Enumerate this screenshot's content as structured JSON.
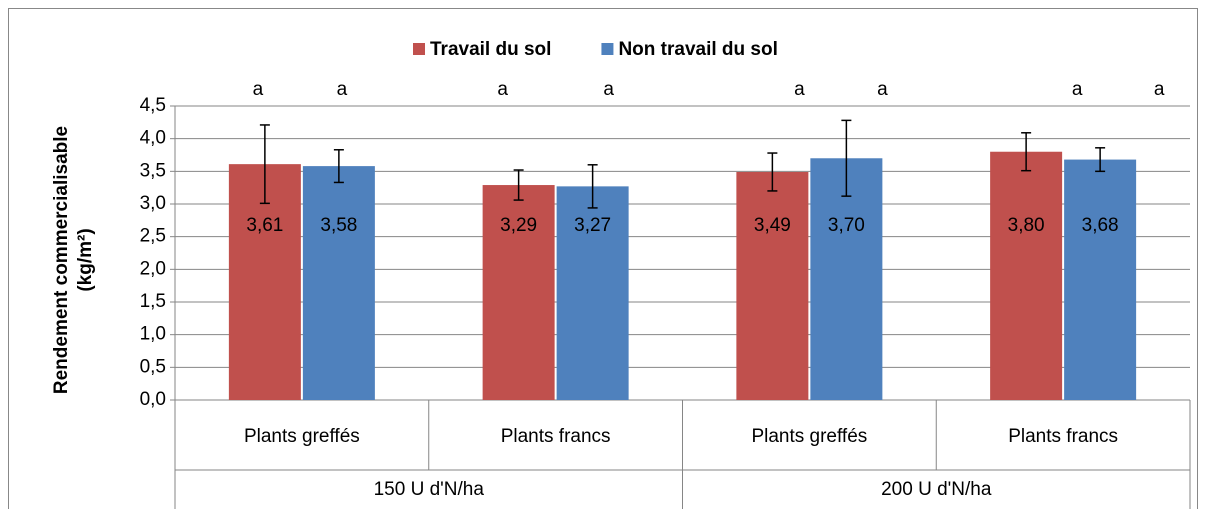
{
  "chart_data": {
    "type": "bar",
    "ylabel": [
      "Rendement commercialisable",
      "(kg/m²)"
    ],
    "categories": [
      "Plants greffés",
      "Plants francs",
      "Plants greffés",
      "Plants francs"
    ],
    "groups": [
      "150 U d'N/ha",
      "200 U d'N/ha"
    ],
    "series": [
      {
        "name": "Travail du sol",
        "color": "#c0504d",
        "values": [
          3.61,
          3.29,
          3.49,
          3.8
        ],
        "value_labels": [
          "3,61",
          "3,29",
          "3,49",
          "3,80"
        ],
        "errors": [
          0.6,
          0.23,
          0.29,
          0.29
        ],
        "letters": [
          "a",
          "a",
          "a",
          "a"
        ]
      },
      {
        "name": "Non travail du sol",
        "color": "#4f81bd",
        "values": [
          3.58,
          3.27,
          3.7,
          3.68
        ],
        "value_labels": [
          "3,58",
          "3,27",
          "3,70",
          "3,68"
        ],
        "errors": [
          0.25,
          0.33,
          0.58,
          0.18
        ],
        "letters": [
          "a",
          "a",
          "a",
          "a"
        ]
      }
    ],
    "ylim": [
      0,
      4.5
    ],
    "yticks": [
      {
        "value": 0,
        "label": "0,0"
      },
      {
        "value": 0.5,
        "label": "0,5"
      },
      {
        "value": 1,
        "label": "1,0"
      },
      {
        "value": 1.5,
        "label": "1,5"
      },
      {
        "value": 2,
        "label": "2,0"
      },
      {
        "value": 2.5,
        "label": "2,5"
      },
      {
        "value": 3,
        "label": "3,0"
      },
      {
        "value": 3.5,
        "label": "3,5"
      },
      {
        "value": 4,
        "label": "4,0"
      },
      {
        "value": 4.5,
        "label": "4,5"
      }
    ],
    "grid": true,
    "legend": "top"
  }
}
